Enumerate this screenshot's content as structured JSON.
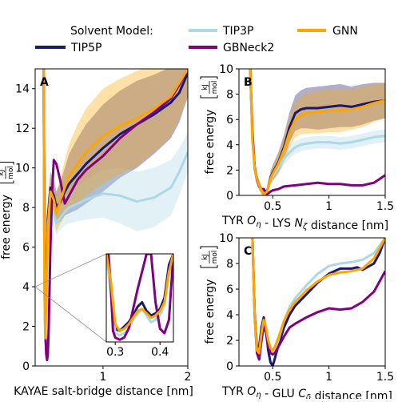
{
  "colors": {
    "TIP5P": "#191970",
    "TIP3P": "#add8e6",
    "GBNeck2": "#800080",
    "GNN": "#ffa500"
  },
  "legend": {
    "header": "Solvent Model:",
    "entries": [
      "TIP5P",
      "TIP3P",
      "GBNeck2",
      "GNN"
    ]
  },
  "chart_data": [
    {
      "panel": "A",
      "type": "line",
      "xlabel": "KAYAE salt-bridge distance [nm]",
      "ylabel": "free energy",
      "ylabel_unit_num": "kJ",
      "ylabel_unit_den": "mol",
      "xlim": [
        0.2,
        2.0
      ],
      "ylim": [
        0,
        15
      ],
      "xticks": [
        1,
        2
      ],
      "yticks": [
        0,
        2,
        4,
        6,
        8,
        10,
        12,
        14
      ],
      "series": [
        {
          "name": "TIP5P",
          "x": [
            0.3,
            0.31,
            0.32,
            0.33,
            0.35,
            0.38,
            0.42,
            0.45,
            0.5,
            0.55,
            0.6,
            0.7,
            0.8,
            1.0,
            1.2,
            1.4,
            1.6,
            1.8,
            1.9,
            2.0
          ],
          "y": [
            15,
            4,
            1.5,
            3.5,
            7.5,
            9.0,
            8.6,
            8.0,
            8.3,
            8.8,
            9.2,
            9.7,
            10.2,
            11.0,
            11.7,
            12.2,
            12.7,
            13.3,
            13.8,
            14.8
          ],
          "band": [
            0.3,
            0.4,
            0.5,
            0.6,
            0.8,
            0.8,
            0.8,
            0.8,
            1.0,
            1.2,
            1.5,
            1.8,
            2.0,
            2.2,
            2.2,
            2.2,
            2.0,
            1.8,
            1.5,
            1.2
          ]
        },
        {
          "name": "TIP3P",
          "x": [
            0.3,
            0.31,
            0.32,
            0.33,
            0.35,
            0.38,
            0.42,
            0.45,
            0.5,
            0.55,
            0.6,
            0.7,
            0.8,
            1.0,
            1.2,
            1.4,
            1.6,
            1.8,
            1.9,
            2.0
          ],
          "y": [
            15,
            3.5,
            1.2,
            3.0,
            6.5,
            7.8,
            7.6,
            7.2,
            7.5,
            7.8,
            8.0,
            8.2,
            8.4,
            8.7,
            8.6,
            8.3,
            8.5,
            9.0,
            9.8,
            10.8
          ],
          "band": [
            0.3,
            0.4,
            0.5,
            0.5,
            0.6,
            0.6,
            0.6,
            0.6,
            0.6,
            0.7,
            0.8,
            0.9,
            1.0,
            1.2,
            1.4,
            1.5,
            1.5,
            1.4,
            1.2,
            1.0
          ]
        },
        {
          "name": "GBNeck2",
          "x": [
            0.3,
            0.31,
            0.32,
            0.33,
            0.34,
            0.35,
            0.36,
            0.38,
            0.4,
            0.42,
            0.45,
            0.5,
            0.55,
            0.6,
            0.7,
            0.8,
            1.0,
            1.2,
            1.4,
            1.6,
            1.8,
            1.9,
            2.0
          ],
          "y": [
            15,
            7,
            1.8,
            0.6,
            0.3,
            0.6,
            2.0,
            6.0,
            8.8,
            10.4,
            10.2,
            9.3,
            8.2,
            8.6,
            9.4,
            9.9,
            10.6,
            11.5,
            12.2,
            12.8,
            13.5,
            14.2,
            15
          ],
          "band": []
        },
        {
          "name": "GNN",
          "x": [
            0.3,
            0.31,
            0.32,
            0.33,
            0.35,
            0.38,
            0.42,
            0.45,
            0.5,
            0.55,
            0.6,
            0.7,
            0.8,
            1.0,
            1.2,
            1.4,
            1.6,
            1.8,
            1.9,
            2.0
          ],
          "y": [
            15,
            4,
            1.4,
            3.2,
            7.0,
            8.8,
            8.4,
            7.7,
            8.4,
            9.0,
            9.6,
            10.2,
            10.8,
            11.6,
            12.1,
            12.5,
            13.0,
            13.6,
            14.3,
            15
          ],
          "band": [
            0.3,
            0.4,
            0.5,
            0.6,
            0.8,
            0.9,
            0.9,
            0.9,
            1.2,
            1.4,
            1.6,
            2.0,
            2.2,
            2.4,
            2.4,
            2.4,
            2.2,
            2.0,
            1.8,
            1.5
          ]
        }
      ],
      "inset": {
        "xlim": [
          0.28,
          0.43
        ],
        "ylim": [
          0,
          4
        ],
        "xticks": [
          0.3,
          0.4
        ],
        "series": [
          {
            "name": "TIP5P",
            "x": [
              0.28,
              0.29,
              0.3,
              0.31,
              0.32,
              0.33,
              0.34,
              0.35,
              0.36,
              0.37,
              0.38,
              0.39,
              0.4,
              0.41,
              0.42,
              0.43
            ],
            "y": [
              4,
              2.5,
              0.6,
              0.5,
              0.7,
              0.9,
              1.2,
              1.6,
              1.8,
              1.4,
              1.2,
              1.3,
              1.5,
              2.0,
              3.5,
              4
            ]
          },
          {
            "name": "TIP3P",
            "x": [
              0.28,
              0.29,
              0.3,
              0.31,
              0.32,
              0.33,
              0.34,
              0.35,
              0.36,
              0.37,
              0.38,
              0.39,
              0.4,
              0.41,
              0.42,
              0.43
            ],
            "y": [
              4,
              2.2,
              0.4,
              0.3,
              0.4,
              0.6,
              1.0,
              1.3,
              1.5,
              1.2,
              0.9,
              1.0,
              1.2,
              1.7,
              3.0,
              4
            ]
          },
          {
            "name": "GBNeck2",
            "x": [
              0.28,
              0.285,
              0.29,
              0.295,
              0.3,
              0.31,
              0.32,
              0.33,
              0.34,
              0.35,
              0.36,
              0.37,
              0.38,
              0.39,
              0.4,
              0.41,
              0.42,
              0.43
            ],
            "y": [
              4,
              4,
              2.5,
              0.5,
              0.2,
              0.1,
              0.2,
              0.6,
              1.5,
              2.4,
              3.2,
              4,
              4,
              1.8,
              0.6,
              0.4,
              1.0,
              4
            ]
          },
          {
            "name": "GNN",
            "x": [
              0.28,
              0.29,
              0.3,
              0.31,
              0.32,
              0.33,
              0.34,
              0.35,
              0.36,
              0.37,
              0.38,
              0.39,
              0.4,
              0.41,
              0.42,
              0.43
            ],
            "y": [
              4,
              2.8,
              0.8,
              0.5,
              0.6,
              0.8,
              1.1,
              1.4,
              1.5,
              1.3,
              1.1,
              1.2,
              1.4,
              1.8,
              3.2,
              4
            ]
          }
        ]
      }
    },
    {
      "panel": "B",
      "type": "line",
      "xlabel": "TYR O_η - LYS N_ζ distance [nm]",
      "ylabel": "free energy",
      "ylabel_unit_num": "kJ",
      "ylabel_unit_den": "mol",
      "xlim": [
        0.2,
        1.5
      ],
      "ylim": [
        0,
        10
      ],
      "xticks": [
        0.5,
        1.0,
        1.5
      ],
      "yticks": [
        0,
        2,
        4,
        6,
        8,
        10
      ],
      "series": [
        {
          "name": "TIP5P",
          "x": [
            0.3,
            0.32,
            0.34,
            0.36,
            0.38,
            0.4,
            0.42,
            0.45,
            0.48,
            0.5,
            0.55,
            0.6,
            0.65,
            0.7,
            0.75,
            0.8,
            0.9,
            1.0,
            1.1,
            1.2,
            1.3,
            1.4,
            1.5
          ],
          "y": [
            10,
            4.5,
            2.2,
            1.3,
            0.8,
            0.4,
            0.1,
            0.3,
            1.4,
            1.8,
            2.6,
            3.8,
            5.4,
            6.5,
            6.8,
            6.9,
            6.9,
            7.0,
            7.1,
            7.0,
            7.2,
            7.4,
            7.5
          ],
          "band": [
            0.2,
            0.3,
            0.4,
            0.4,
            0.4,
            0.3,
            0.2,
            0.3,
            0.5,
            0.6,
            0.8,
            1.0,
            1.2,
            1.4,
            1.5,
            1.6,
            1.7,
            1.7,
            1.7,
            1.6,
            1.6,
            1.5,
            1.4
          ]
        },
        {
          "name": "TIP3P",
          "x": [
            0.3,
            0.32,
            0.34,
            0.36,
            0.38,
            0.4,
            0.42,
            0.45,
            0.48,
            0.5,
            0.55,
            0.6,
            0.65,
            0.7,
            0.75,
            0.8,
            0.9,
            1.0,
            1.1,
            1.2,
            1.3,
            1.4,
            1.5
          ],
          "y": [
            10,
            4.2,
            2.0,
            1.2,
            0.7,
            0.3,
            0.1,
            0.3,
            1.2,
            1.5,
            2.2,
            2.9,
            3.4,
            3.8,
            4.0,
            4.1,
            4.2,
            4.2,
            4.1,
            4.2,
            4.4,
            4.6,
            4.7
          ],
          "band": [
            0.2,
            0.3,
            0.3,
            0.3,
            0.3,
            0.2,
            0.2,
            0.3,
            0.4,
            0.4,
            0.5,
            0.5,
            0.5,
            0.5,
            0.5,
            0.5,
            0.5,
            0.5,
            0.5,
            0.5,
            0.5,
            0.5,
            0.5
          ]
        },
        {
          "name": "GBNeck2",
          "x": [
            0.3,
            0.32,
            0.34,
            0.36,
            0.38,
            0.4,
            0.42,
            0.45,
            0.48,
            0.5,
            0.55,
            0.6,
            0.7,
            0.8,
            0.9,
            1.0,
            1.1,
            1.2,
            1.3,
            1.4,
            1.45,
            1.5
          ],
          "y": [
            10,
            5.0,
            2.2,
            1.2,
            0.7,
            0.5,
            0.5,
            0.1,
            0.3,
            0.4,
            0.5,
            0.7,
            0.8,
            0.9,
            1.0,
            0.9,
            0.9,
            0.8,
            0.8,
            1.0,
            1.3,
            1.6
          ],
          "band": []
        },
        {
          "name": "GNN",
          "x": [
            0.3,
            0.32,
            0.34,
            0.36,
            0.38,
            0.4,
            0.42,
            0.45,
            0.48,
            0.5,
            0.55,
            0.6,
            0.65,
            0.7,
            0.75,
            0.8,
            0.9,
            1.0,
            1.1,
            1.2,
            1.3,
            1.4,
            1.5
          ],
          "y": [
            10,
            4.4,
            2.1,
            1.3,
            0.8,
            0.4,
            0.1,
            0.3,
            1.3,
            1.7,
            2.5,
            3.6,
            5.0,
            6.0,
            6.3,
            6.5,
            6.6,
            6.7,
            6.7,
            6.8,
            7.0,
            7.3,
            7.5
          ],
          "band": [
            0.2,
            0.3,
            0.4,
            0.4,
            0.4,
            0.3,
            0.2,
            0.3,
            0.5,
            0.6,
            0.8,
            1.0,
            1.2,
            1.4,
            1.5,
            1.6,
            1.7,
            1.7,
            1.7,
            1.6,
            1.6,
            1.5,
            1.4
          ]
        }
      ]
    },
    {
      "panel": "C",
      "type": "line",
      "xlabel": "TYR O_η - GLU C_δ distance [nm]",
      "ylabel": "free energy",
      "ylabel_unit_num": "kJ",
      "ylabel_unit_den": "mol",
      "xlim": [
        0.2,
        1.5
      ],
      "ylim": [
        0,
        10
      ],
      "xticks": [
        0.5,
        1.0,
        1.5
      ],
      "yticks": [
        0,
        2,
        4,
        6,
        8,
        10
      ],
      "series": [
        {
          "name": "TIP5P",
          "x": [
            0.32,
            0.34,
            0.36,
            0.38,
            0.4,
            0.42,
            0.44,
            0.46,
            0.48,
            0.5,
            0.52,
            0.55,
            0.6,
            0.65,
            0.7,
            0.8,
            0.9,
            1.0,
            1.1,
            1.2,
            1.25,
            1.3,
            1.4,
            1.45,
            1.5
          ],
          "y": [
            10,
            4.0,
            1.5,
            1.5,
            3.0,
            3.8,
            2.8,
            1.2,
            0.3,
            0.0,
            0.6,
            1.6,
            3.0,
            4.0,
            4.7,
            5.6,
            6.5,
            7.2,
            7.6,
            7.6,
            7.7,
            7.5,
            8.0,
            8.8,
            10
          ]
        },
        {
          "name": "TIP3P",
          "x": [
            0.32,
            0.34,
            0.36,
            0.38,
            0.4,
            0.42,
            0.44,
            0.46,
            0.48,
            0.5,
            0.52,
            0.55,
            0.6,
            0.65,
            0.7,
            0.8,
            0.9,
            1.0,
            1.1,
            1.2,
            1.3,
            1.4,
            1.5
          ],
          "y": [
            10,
            3.5,
            1.0,
            0.8,
            2.0,
            3.0,
            2.6,
            1.8,
            1.2,
            1.0,
            1.3,
            2.0,
            3.5,
            4.6,
            5.3,
            6.3,
            7.2,
            7.8,
            8.0,
            8.1,
            8.3,
            8.8,
            10
          ]
        },
        {
          "name": "GBNeck2",
          "x": [
            0.32,
            0.34,
            0.36,
            0.38,
            0.4,
            0.42,
            0.44,
            0.46,
            0.48,
            0.5,
            0.52,
            0.55,
            0.6,
            0.65,
            0.7,
            0.8,
            0.9,
            1.0,
            1.1,
            1.2,
            1.3,
            1.4,
            1.45,
            1.5
          ],
          "y": [
            10,
            4.0,
            1.0,
            0.5,
            2.0,
            3.2,
            2.6,
            1.5,
            1.0,
            0.9,
            1.0,
            1.5,
            2.3,
            3.0,
            3.3,
            3.8,
            4.2,
            4.5,
            4.4,
            4.5,
            5.0,
            5.8,
            6.6,
            7.4
          ]
        },
        {
          "name": "GNN",
          "x": [
            0.32,
            0.34,
            0.36,
            0.38,
            0.4,
            0.42,
            0.44,
            0.46,
            0.48,
            0.5,
            0.52,
            0.55,
            0.6,
            0.65,
            0.7,
            0.8,
            0.9,
            1.0,
            1.1,
            1.2,
            1.3,
            1.4,
            1.5
          ],
          "y": [
            10,
            3.8,
            1.2,
            1.0,
            2.6,
            3.6,
            3.0,
            2.0,
            1.4,
            1.2,
            1.5,
            2.2,
            3.5,
            4.4,
            5.0,
            5.9,
            6.6,
            7.1,
            7.3,
            7.4,
            7.6,
            8.4,
            10
          ]
        }
      ]
    }
  ]
}
